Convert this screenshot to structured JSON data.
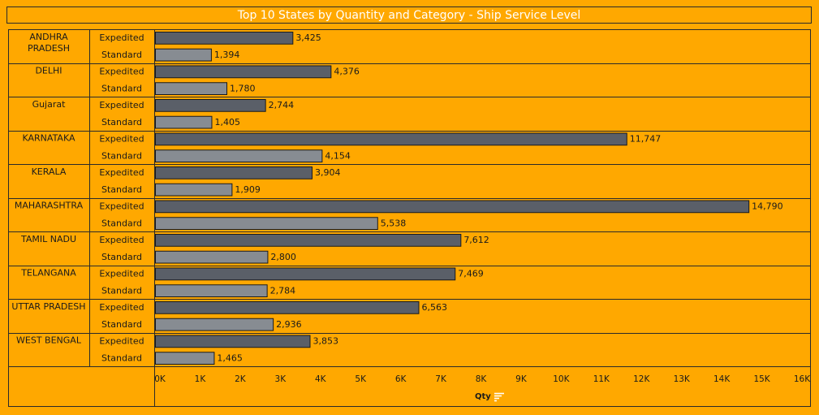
{
  "colors": {
    "background": "#FFA800",
    "expedited": "#5A5F68",
    "standard": "#878C92",
    "title_text": "#FFFFFF"
  },
  "chart_data": {
    "type": "bar",
    "orientation": "horizontal",
    "title": "Top 10 States by Quantity and Category - Ship Service Level",
    "xlabel": "Qty",
    "xlim": [
      0,
      16000
    ],
    "x_ticks": [
      "0K",
      "1K",
      "2K",
      "3K",
      "4K",
      "5K",
      "6K",
      "7K",
      "8K",
      "9K",
      "10K",
      "11K",
      "12K",
      "13K",
      "14K",
      "15K",
      "16K"
    ],
    "categories": [
      "ANDHRA PRADESH",
      "DELHI",
      "Gujarat",
      "KARNATAKA",
      "KERALA",
      "MAHARASHTRA",
      "TAMIL NADU",
      "TELANGANA",
      "UTTAR PRADESH",
      "WEST BENGAL"
    ],
    "series": [
      {
        "name": "Expedited",
        "values": [
          3425,
          4376,
          2744,
          11747,
          3904,
          14790,
          7612,
          7469,
          6563,
          3853
        ]
      },
      {
        "name": "Standard",
        "values": [
          1394,
          1780,
          1405,
          4154,
          1909,
          5538,
          2800,
          2784,
          2936,
          1465
        ]
      }
    ],
    "value_labels": [
      [
        "3,425",
        "1,394"
      ],
      [
        "4,376",
        "1,780"
      ],
      [
        "2,744",
        "1,405"
      ],
      [
        "11,747",
        "4,154"
      ],
      [
        "3,904",
        "1,909"
      ],
      [
        "14,790",
        "5,538"
      ],
      [
        "7,612",
        "2,800"
      ],
      [
        "7,469",
        "2,784"
      ],
      [
        "6,563",
        "2,936"
      ],
      [
        "3,853",
        "1,465"
      ]
    ],
    "axis_sort_icon": "sort-descending-icon"
  }
}
